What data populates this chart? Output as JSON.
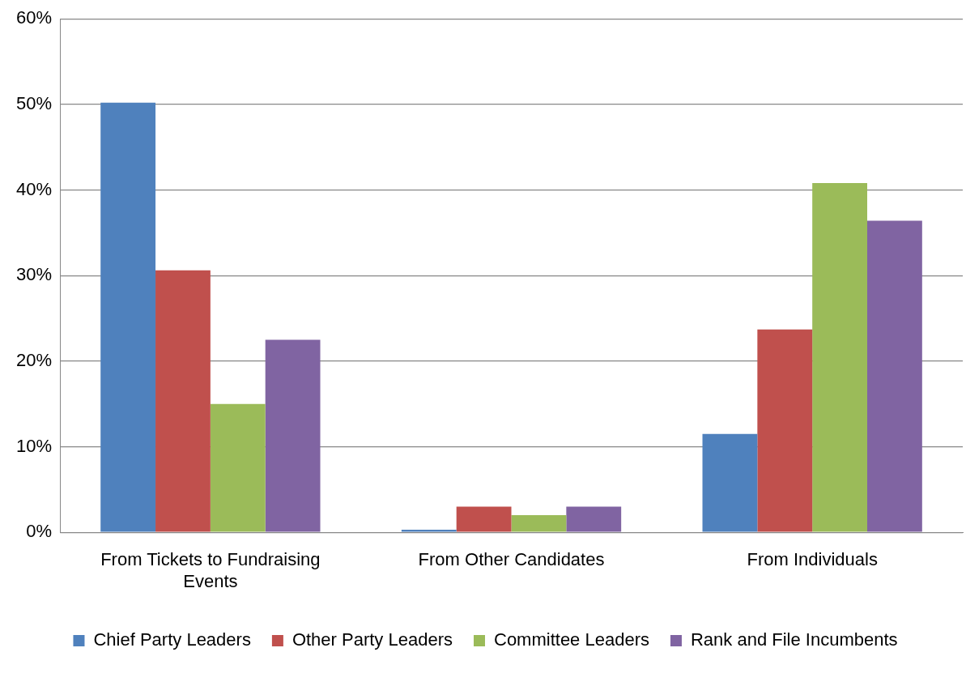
{
  "chart_data": {
    "type": "bar",
    "categories": [
      "From Tickets to Fundraising Events",
      "From Other Candidates",
      "From Individuals"
    ],
    "series": [
      {
        "name": "Chief Party Leaders",
        "color": "#4f81bd",
        "values": [
          50.2,
          0.3,
          11.5
        ]
      },
      {
        "name": "Other Party Leaders",
        "color": "#c0504d",
        "values": [
          30.6,
          3.0,
          23.7
        ]
      },
      {
        "name": "Committee Leaders",
        "color": "#9bbb59",
        "values": [
          15.0,
          2.0,
          40.8
        ]
      },
      {
        "name": "Rank and File Incumbents",
        "color": "#8064a2",
        "values": [
          22.5,
          3.0,
          36.4
        ]
      }
    ],
    "ylim": [
      0,
      60
    ],
    "yticks": [
      {
        "value": 0,
        "label": "0%"
      },
      {
        "value": 10,
        "label": "10%"
      },
      {
        "value": 20,
        "label": "20%"
      },
      {
        "value": 30,
        "label": "30%"
      },
      {
        "value": 40,
        "label": "40%"
      },
      {
        "value": 50,
        "label": "50%"
      },
      {
        "value": 60,
        "label": "60%"
      }
    ],
    "grid": "y",
    "legend": "bottom"
  }
}
